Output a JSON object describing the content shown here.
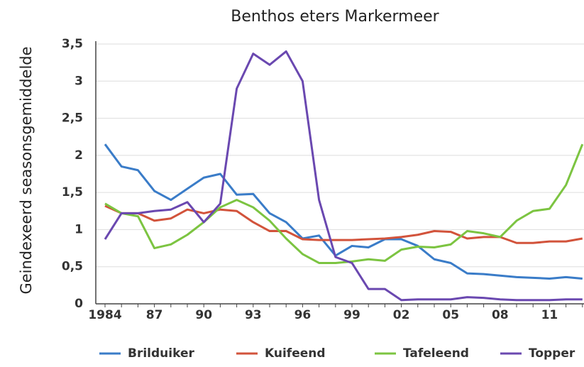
{
  "chart_data": {
    "type": "line",
    "title": "Benthos eters Markermeer",
    "y_label": "Geindexeerd seasonsgemiddelde",
    "categories": [
      "1984",
      null,
      null,
      "87",
      null,
      null,
      "90",
      null,
      null,
      "93",
      null,
      null,
      "96",
      null,
      null,
      "99",
      null,
      null,
      "02",
      null,
      null,
      "05",
      null,
      null,
      "08",
      null,
      null,
      "11",
      null,
      null
    ],
    "series": [
      {
        "name": "Brilduiker",
        "color": "#3a7cc8",
        "values": [
          2.15,
          1.85,
          1.8,
          1.52,
          1.4,
          1.55,
          1.7,
          1.75,
          1.47,
          1.48,
          1.22,
          1.1,
          0.88,
          0.92,
          0.65,
          0.78,
          0.76,
          0.87,
          0.87,
          0.78,
          0.6,
          0.55,
          0.41,
          0.4,
          0.38,
          0.36,
          0.35,
          0.34,
          0.36,
          0.34
        ]
      },
      {
        "name": "Kuifeend",
        "color": "#d2533b",
        "values": [
          1.32,
          1.22,
          1.22,
          1.12,
          1.15,
          1.27,
          1.22,
          1.27,
          1.25,
          1.1,
          0.98,
          0.98,
          0.87,
          0.86,
          0.86,
          0.86,
          0.87,
          0.88,
          0.9,
          0.93,
          0.98,
          0.97,
          0.88,
          0.9,
          0.9,
          0.82,
          0.82,
          0.84,
          0.84,
          0.88
        ]
      },
      {
        "name": "Tafeleend",
        "color": "#7cc441",
        "values": [
          1.35,
          1.22,
          1.18,
          0.75,
          0.8,
          0.93,
          1.1,
          1.3,
          1.4,
          1.3,
          1.12,
          0.88,
          0.67,
          0.55,
          0.55,
          0.57,
          0.6,
          0.58,
          0.73,
          0.77,
          0.76,
          0.8,
          0.98,
          0.95,
          0.9,
          1.12,
          1.25,
          1.28,
          1.6,
          2.15
        ]
      },
      {
        "name": "Topper",
        "color": "#6a48b0",
        "values": [
          0.87,
          1.22,
          1.22,
          1.25,
          1.27,
          1.37,
          1.1,
          1.35,
          2.9,
          3.37,
          3.22,
          3.4,
          3.0,
          1.4,
          0.63,
          0.55,
          0.2,
          0.2,
          0.05,
          0.06,
          0.06,
          0.06,
          0.09,
          0.08,
          0.06,
          0.05,
          0.05,
          0.05,
          0.06,
          0.06
        ]
      }
    ],
    "ylim": [
      0,
      3.5
    ],
    "yticks": [
      0,
      {
        "value": 0.5,
        "label": "0,5"
      },
      1,
      {
        "value": 1.5,
        "label": "1,5"
      },
      2,
      {
        "value": 2.5,
        "label": "2,5"
      },
      3,
      {
        "value": 3.5,
        "label": "3,5"
      }
    ],
    "grid": true
  }
}
